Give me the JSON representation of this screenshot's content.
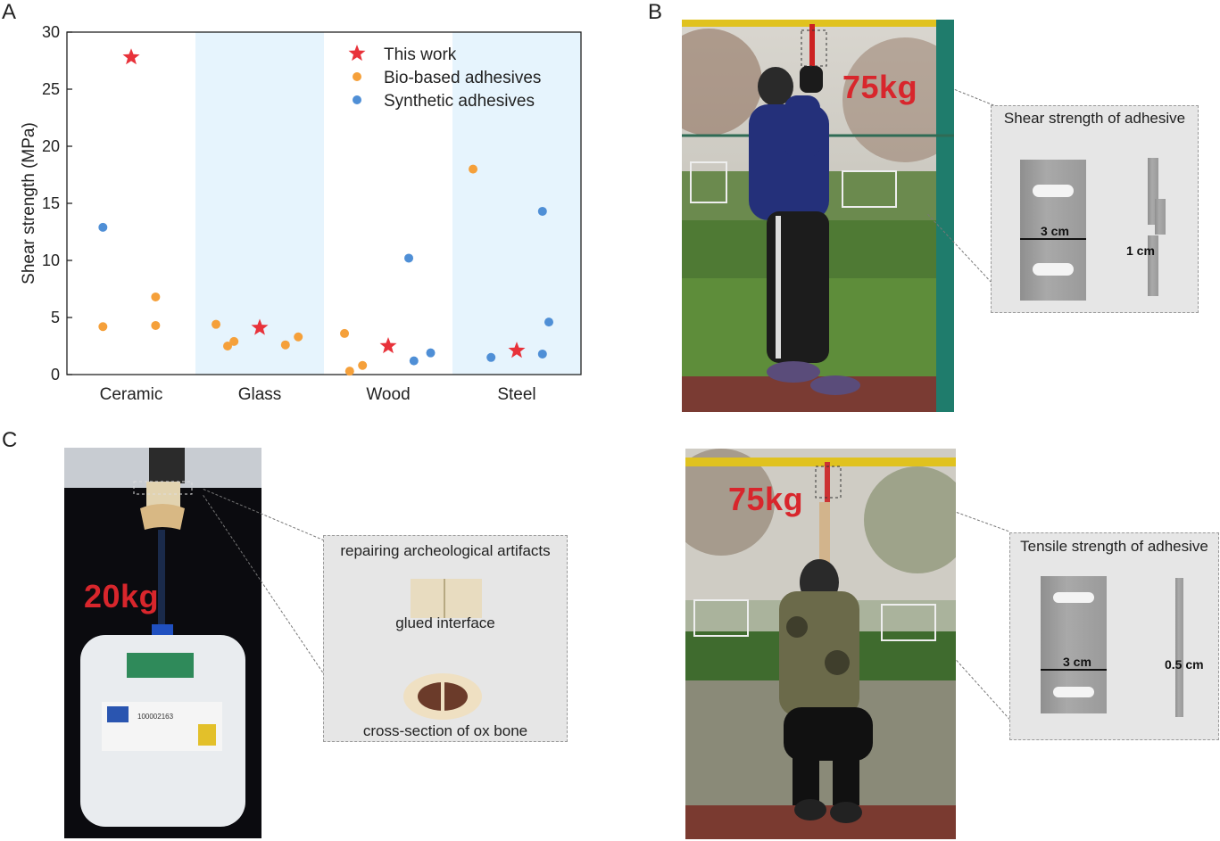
{
  "panels": {
    "a_letter": "A",
    "b_letter": "B",
    "c_letter": "C"
  },
  "chart_data": {
    "type": "scatter",
    "ylabel": "Shear strength (MPa)",
    "xlabel": "",
    "ylim": [
      0,
      30
    ],
    "yticks": [
      0,
      5,
      10,
      15,
      20,
      25,
      30
    ],
    "categories": [
      "Ceramic",
      "Glass",
      "Wood",
      "Steel"
    ],
    "shaded_categories": [
      "Glass",
      "Steel"
    ],
    "legend_position": "top-right",
    "series": [
      {
        "name": "This work",
        "marker": "star",
        "color": "#e8323a",
        "points": [
          {
            "category": "Ceramic",
            "offset": 0.0,
            "y": 27.8
          },
          {
            "category": "Glass",
            "offset": 0.0,
            "y": 4.1
          },
          {
            "category": "Wood",
            "offset": 0.0,
            "y": 2.5
          },
          {
            "category": "Steel",
            "offset": 0.0,
            "y": 2.1
          }
        ]
      },
      {
        "name": "Bio-based adhesives",
        "marker": "circle",
        "color": "#f5a03a",
        "points": [
          {
            "category": "Ceramic",
            "offset": -0.22,
            "y": 4.2
          },
          {
            "category": "Ceramic",
            "offset": 0.19,
            "y": 6.8
          },
          {
            "category": "Ceramic",
            "offset": 0.19,
            "y": 4.3
          },
          {
            "category": "Glass",
            "offset": -0.34,
            "y": 4.4
          },
          {
            "category": "Glass",
            "offset": -0.25,
            "y": 2.5
          },
          {
            "category": "Glass",
            "offset": -0.2,
            "y": 2.9
          },
          {
            "category": "Glass",
            "offset": 0.2,
            "y": 2.6
          },
          {
            "category": "Glass",
            "offset": 0.3,
            "y": 3.3
          },
          {
            "category": "Wood",
            "offset": -0.34,
            "y": 3.6
          },
          {
            "category": "Wood",
            "offset": -0.3,
            "y": 0.3
          },
          {
            "category": "Wood",
            "offset": -0.2,
            "y": 0.8
          },
          {
            "category": "Steel",
            "offset": -0.34,
            "y": 18.0
          }
        ]
      },
      {
        "name": "Synthetic adhesives",
        "marker": "circle",
        "color": "#4f8fd6",
        "points": [
          {
            "category": "Ceramic",
            "offset": -0.22,
            "y": 12.9
          },
          {
            "category": "Wood",
            "offset": 0.16,
            "y": 10.2
          },
          {
            "category": "Wood",
            "offset": 0.2,
            "y": 1.2
          },
          {
            "category": "Wood",
            "offset": 0.33,
            "y": 1.9
          },
          {
            "category": "Steel",
            "offset": -0.2,
            "y": 1.5
          },
          {
            "category": "Steel",
            "offset": 0.2,
            "y": 14.3
          },
          {
            "category": "Steel",
            "offset": 0.2,
            "y": 1.8
          },
          {
            "category": "Steel",
            "offset": 0.25,
            "y": 4.6
          }
        ]
      }
    ]
  },
  "panel_b": {
    "top_weight": "75kg",
    "top_inset_title": "Shear strength of adhesive",
    "top_dim_width": "3 cm",
    "top_dim_overlap": "1 cm",
    "bottom_weight": "75kg",
    "bottom_inset_title": "Tensile strength of adhesive",
    "bottom_dim_width": "3 cm",
    "bottom_dim_thickness": "0.5 cm"
  },
  "panel_c": {
    "weight": "20kg",
    "inset_title": "repairing archeological artifacts",
    "label_glued": "glued interface",
    "label_cross": "cross-section of ox bone",
    "bottle_code": "100002163"
  }
}
